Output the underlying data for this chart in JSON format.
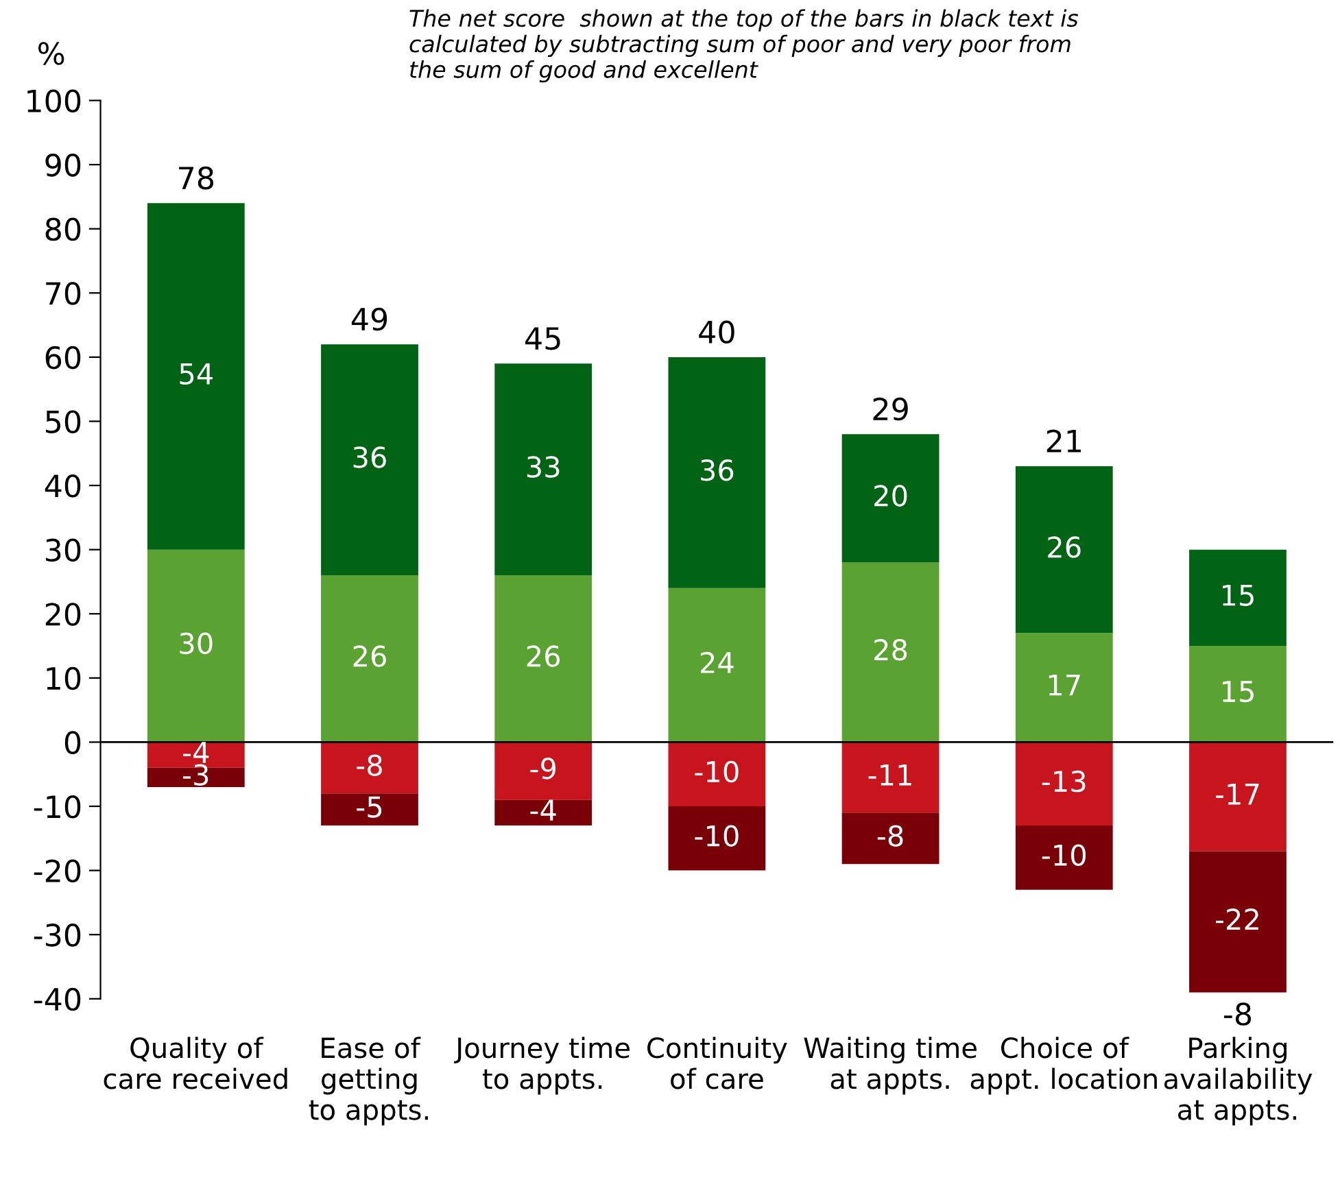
{
  "chart_data": {
    "type": "bar",
    "stacked": true,
    "ylabel": "%",
    "annotations": [
      "The net score  shown at the top of the bars in black text is\ncalculated by subtracting sum of poor and very poor from\nthe sum of good and excellent"
    ],
    "categories": [
      "Quality of\ncare received",
      "Ease of\ngetting\nto appts.",
      "Journey time\nto appts.",
      "Continuity\nof care",
      "Waiting time\nat appts.",
      "Choice of\nappt. location",
      "Parking\navailability\nat appts."
    ],
    "series": [
      {
        "color": "#5aa332",
        "values": [
          30,
          26,
          26,
          24,
          28,
          17,
          15
        ]
      },
      {
        "color": "#006414",
        "values": [
          54,
          36,
          33,
          36,
          20,
          26,
          15
        ]
      },
      {
        "color": "#c8141c",
        "values": [
          -4,
          -8,
          -9,
          -10,
          -11,
          -13,
          -17
        ]
      },
      {
        "color": "#7a0008",
        "values": [
          -3,
          -5,
          -4,
          -10,
          -8,
          -10,
          -22
        ]
      }
    ],
    "totals": [
      "78",
      "49",
      "45",
      "40",
      "29",
      "21",
      "-8"
    ],
    "data_labels": true,
    "ylim": [
      -40,
      100
    ],
    "yticks": [
      -40,
      -30,
      -20,
      -10,
      0,
      10,
      20,
      30,
      40,
      50,
      60,
      70,
      80,
      90,
      100
    ],
    "ref_lines": [
      {
        "axis": "y",
        "value": 0,
        "color": "#000000"
      }
    ],
    "grid": false,
    "legend": false
  }
}
